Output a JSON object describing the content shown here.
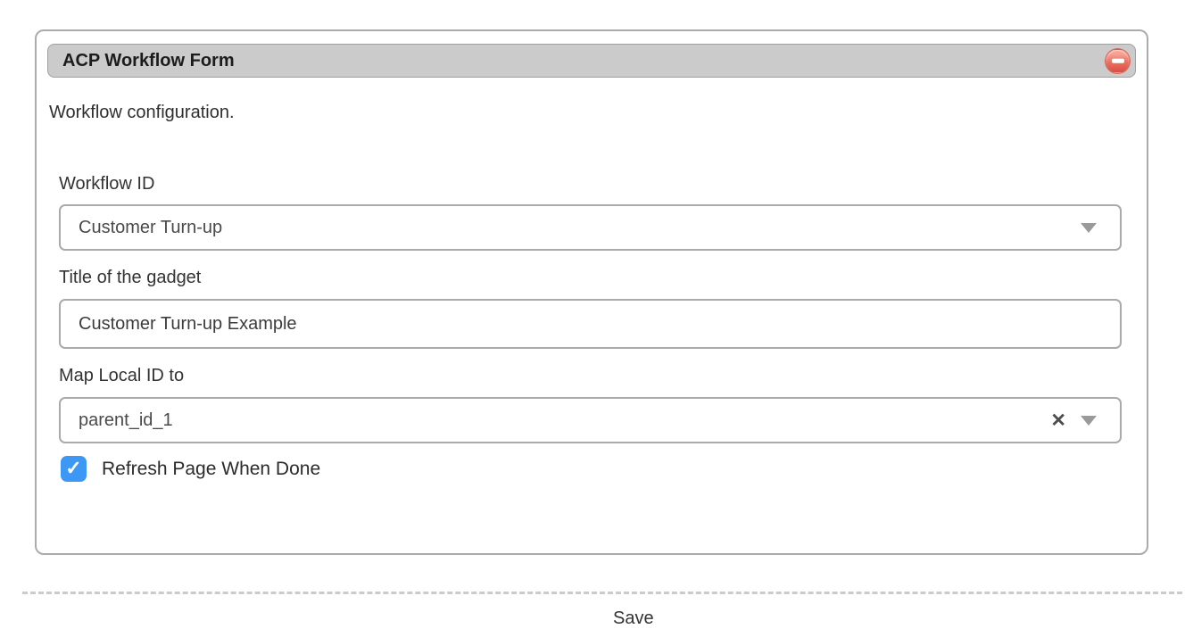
{
  "gadget": {
    "header": {
      "title": "ACP Workflow Form"
    },
    "description": "Workflow configuration.",
    "fields": {
      "workflow_id": {
        "label": "Workflow ID",
        "value": "Customer Turn-up",
        "type": "select"
      },
      "gadget_title": {
        "label": "Title of the gadget",
        "value": "Customer Turn-up Example",
        "type": "text"
      },
      "map_local_id": {
        "label": "Map Local ID to",
        "value": "parent_id_1",
        "type": "select",
        "clearable": true
      },
      "refresh_page": {
        "label": "Refresh Page When Done",
        "checked": true
      }
    }
  },
  "footer": {
    "save_label": "Save"
  },
  "icons": {
    "clear": "✕",
    "check": "✓"
  },
  "colors": {
    "header_gray": "#cbcbcb",
    "remove_red": "#d94f43",
    "checkbox_blue": "#3c98f4",
    "border_gray": "#aaaaaa"
  }
}
